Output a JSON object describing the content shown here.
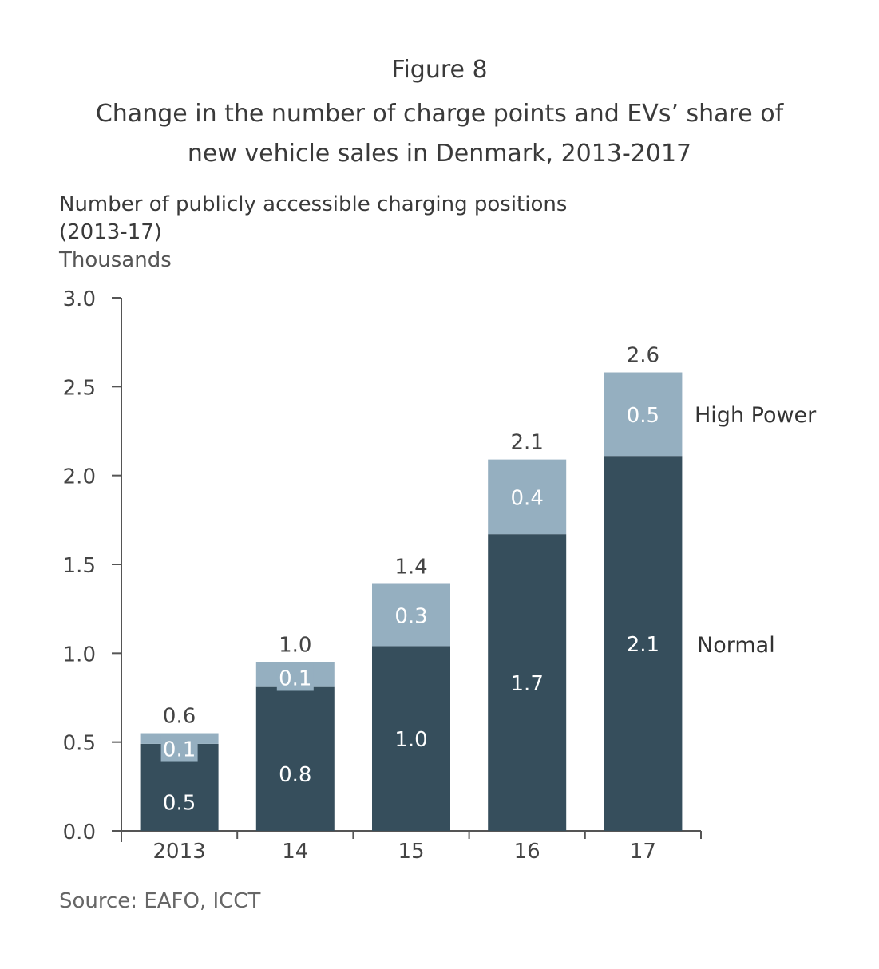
{
  "chart_data": {
    "type": "bar",
    "stacked": true,
    "figure_label": "Figure 8",
    "title": "Change in the number of charge points and EVs’ share of new vehicle sales in Denmark, 2013-2017",
    "subtitle_line1": "Number of publicly accessible charging positions",
    "subtitle_line2": "(2013-17)",
    "ylabel": "Thousands",
    "xlabel": "",
    "ylim": [
      0,
      3.0
    ],
    "yticks": [
      "0.0",
      "0.5",
      "1.0",
      "1.5",
      "2.0",
      "2.5",
      "3.0"
    ],
    "categories": [
      "2013",
      "14",
      "15",
      "16",
      "17"
    ],
    "series": [
      {
        "name": "Normal",
        "color": "#364e5c",
        "values": [
          0.49,
          0.81,
          1.04,
          1.67,
          2.11
        ],
        "labels": [
          "0.5",
          "0.8",
          "1.0",
          "1.7",
          "2.1"
        ]
      },
      {
        "name": "High Power",
        "color": "#95afc0",
        "values": [
          0.06,
          0.14,
          0.35,
          0.42,
          0.47
        ],
        "labels": [
          "0.1",
          "0.1",
          "0.3",
          "0.4",
          "0.5"
        ]
      }
    ],
    "totals": [
      "0.6",
      "1.0",
      "1.4",
      "2.1",
      "2.6"
    ],
    "legend_placement": "right, inline labels",
    "grid": false,
    "source": "Source: EAFO, ICCT"
  }
}
